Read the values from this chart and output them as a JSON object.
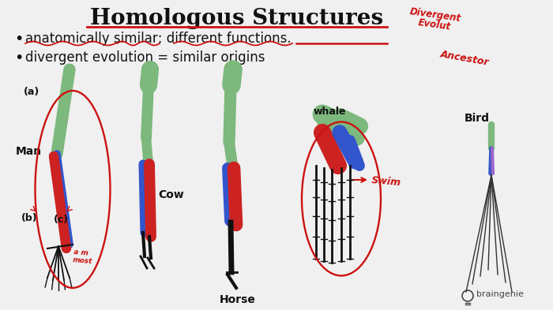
{
  "bg_color": "#f0f0f0",
  "title": "Homologous Structures",
  "title_color": "#111111",
  "title_underline_color": "#cc0000",
  "bullet1": "anatomically similar; different functions.",
  "bullet2": "divergent evolution = similar origins",
  "red_color": "#cc1111",
  "green_bone": "#7db87d",
  "blue_bone": "#3355cc",
  "red_bone": "#cc2222",
  "black_color": "#111111",
  "gray_color": "#888888",
  "braingenie_color": "#444444",
  "handwritten_color": "#cc1111",
  "label_man": "Man",
  "label_cow": "Cow",
  "label_horse": "Horse",
  "label_whale": "whale",
  "label_bird": "Bird",
  "label_a": "(a)",
  "label_b": "(b)",
  "label_c": "(c)"
}
